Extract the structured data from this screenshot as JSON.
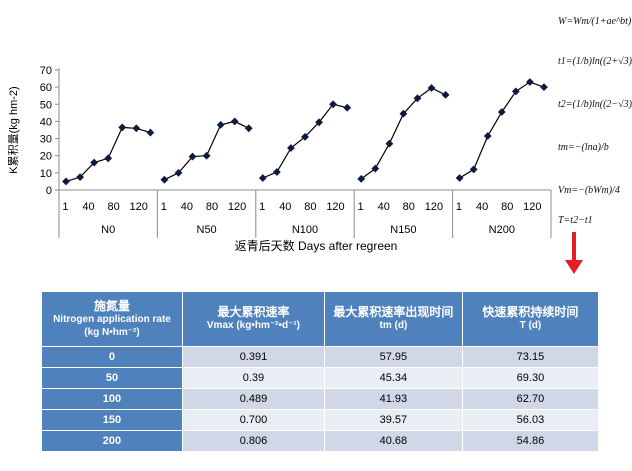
{
  "chart_data": {
    "type": "line",
    "ylabel": "K累积量(kg hm-2)",
    "xlabel": "返青后天数 Days after regreen",
    "ylim": [
      0,
      70
    ],
    "yticks": [
      0,
      10,
      20,
      30,
      40,
      50,
      60,
      70
    ],
    "x_tick_labels": [
      "1",
      "40",
      "80",
      "120"
    ],
    "grid": false,
    "groups": [
      {
        "name": "N0",
        "values": [
          5,
          7.5,
          16,
          18.5,
          36.5,
          36,
          33.5
        ]
      },
      {
        "name": "N50",
        "values": [
          6,
          10,
          19.5,
          20,
          38,
          40,
          36
        ]
      },
      {
        "name": "N100",
        "values": [
          7,
          10.5,
          24.5,
          31,
          39.5,
          50,
          48
        ]
      },
      {
        "name": "N150",
        "values": [
          6.5,
          12.5,
          27,
          44.5,
          53.5,
          59.5,
          55.5
        ]
      },
      {
        "name": "N200",
        "values": [
          7,
          12,
          31.5,
          45.5,
          57.5,
          63,
          60
        ]
      }
    ],
    "line_color": "#000000",
    "marker": "diamond"
  },
  "formulas": {
    "w": "W=Wm/(1+ae^bt)",
    "t1": "t1=(1/b)ln((2+√3)/a)",
    "t2": "t2=(1/b)ln((2−√3)/a)",
    "tm": "tm=−(lna)/b",
    "vm": "Vm=−(bWm)/4",
    "t": "T=t2−t1"
  },
  "table": {
    "headers": [
      {
        "zh": "施氮量",
        "en": "Nitrogen application rate (kg N•hm⁻²)"
      },
      {
        "zh": "最大累积速率",
        "en": "Vmax (kg•hm⁻²•d⁻¹)"
      },
      {
        "zh": "最大累积速率出现时间",
        "en": "tm (d)"
      },
      {
        "zh": "快速累积持续时间",
        "en": "T (d)"
      }
    ],
    "rows": [
      [
        "0",
        "0.391",
        "57.95",
        "73.15"
      ],
      [
        "50",
        "0.39",
        "45.34",
        "69.30"
      ],
      [
        "100",
        "0.489",
        "41.93",
        "62.70"
      ],
      [
        "150",
        "0.700",
        "39.57",
        "56.03"
      ],
      [
        "200",
        "0.806",
        "40.68",
        "54.86"
      ]
    ]
  },
  "colors": {
    "header_bg": "#4f81bd",
    "row_dark": "#d0d8e8",
    "row_light": "#e9edf4",
    "arrow": "#e31e24"
  }
}
